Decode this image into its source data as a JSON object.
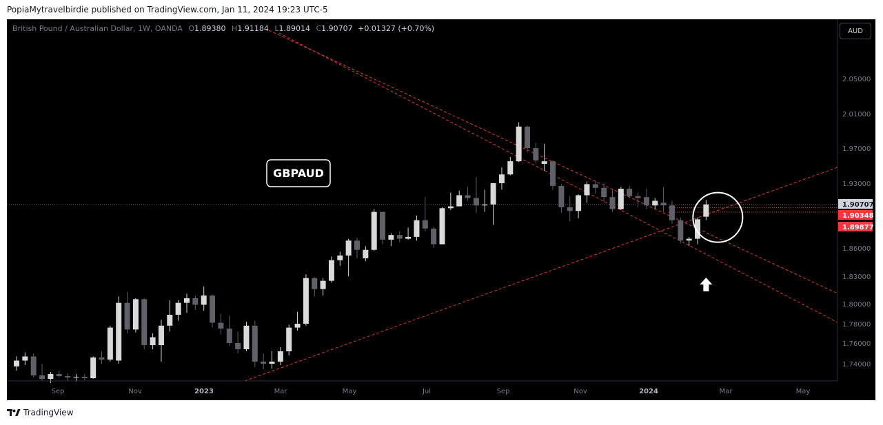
{
  "header": {
    "text": "PopiaMytravelbirdie published on TradingView.com, Jan 11, 2024 19:23 UTC-5"
  },
  "legend": {
    "symbol": "British Pound / Australian Dollar, 1W, OANDA",
    "o_label": "O",
    "o_value": "1.89380",
    "h_label": "H",
    "h_value": "1.91184",
    "l_label": "L",
    "l_value": "1.89014",
    "c_label": "C",
    "c_value": "1.90707",
    "change": "+0.01327 (+0.70%)"
  },
  "currency_button": "AUD",
  "annotation_label": "GBPAUD",
  "footer": {
    "brand": "TradingView",
    "logo_icon": "tradingview-logo-icon"
  },
  "colors": {
    "background": "#000000",
    "candle_up": "#d9d9d9",
    "candle_down": "#5f6068",
    "trendline": "#e53935",
    "last_price_badge": "#d1d4dc",
    "price_badge_red": "#f23645",
    "axis_text": "#787b86"
  },
  "chart_data": {
    "type": "candlestick",
    "title": "",
    "ylabel": "",
    "price_ticks": [
      "2.05000",
      "2.01000",
      "1.97000",
      "1.93000",
      "1.86000",
      "1.83000",
      "1.80000",
      "1.78000",
      "1.76000",
      "1.74000"
    ],
    "time_labels": [
      "Sep",
      "Nov",
      "2023",
      "Mar",
      "May",
      "Jul",
      "Sep",
      "Nov",
      "2024",
      "Mar",
      "May"
    ],
    "price_badges": [
      {
        "value": "1.90707",
        "style": "last"
      },
      {
        "value": "1.90348",
        "style": "red"
      },
      {
        "value": "1.89877",
        "style": "red"
      }
    ],
    "candles": [
      {
        "o": 1.736,
        "h": 1.7472,
        "l": 1.73,
        "c": 1.743
      },
      {
        "o": 1.743,
        "h": 1.751,
        "l": 1.738,
        "c": 1.747
      },
      {
        "o": 1.747,
        "h": 1.75,
        "l": 1.72,
        "c": 1.723
      },
      {
        "o": 1.723,
        "h": 1.74,
        "l": 1.715,
        "c": 1.718
      },
      {
        "o": 1.718,
        "h": 1.728,
        "l": 1.712,
        "c": 1.725
      },
      {
        "o": 1.725,
        "h": 1.73,
        "l": 1.72,
        "c": 1.722
      },
      {
        "o": 1.722,
        "h": 1.726,
        "l": 1.715,
        "c": 1.72
      },
      {
        "o": 1.72,
        "h": 1.725,
        "l": 1.714,
        "c": 1.721
      },
      {
        "o": 1.721,
        "h": 1.725,
        "l": 1.716,
        "c": 1.719
      },
      {
        "o": 1.719,
        "h": 1.747,
        "l": 1.718,
        "c": 1.746
      },
      {
        "o": 1.746,
        "h": 1.752,
        "l": 1.74,
        "c": 1.744
      },
      {
        "o": 1.744,
        "h": 1.778,
        "l": 1.742,
        "c": 1.776
      },
      {
        "o": 1.743,
        "h": 1.808,
        "l": 1.74,
        "c": 1.801
      },
      {
        "o": 1.801,
        "h": 1.813,
        "l": 1.77,
        "c": 1.774
      },
      {
        "o": 1.774,
        "h": 1.806,
        "l": 1.771,
        "c": 1.805
      },
      {
        "o": 1.805,
        "h": 1.806,
        "l": 1.754,
        "c": 1.758
      },
      {
        "o": 1.758,
        "h": 1.77,
        "l": 1.754,
        "c": 1.766
      },
      {
        "o": 1.758,
        "h": 1.784,
        "l": 1.742,
        "c": 1.778
      },
      {
        "o": 1.778,
        "h": 1.804,
        "l": 1.772,
        "c": 1.789
      },
      {
        "o": 1.789,
        "h": 1.804,
        "l": 1.783,
        "c": 1.801
      },
      {
        "o": 1.801,
        "h": 1.811,
        "l": 1.791,
        "c": 1.806
      },
      {
        "o": 1.806,
        "h": 1.809,
        "l": 1.794,
        "c": 1.799
      },
      {
        "o": 1.799,
        "h": 1.819,
        "l": 1.793,
        "c": 1.809
      },
      {
        "o": 1.809,
        "h": 1.81,
        "l": 1.776,
        "c": 1.781
      },
      {
        "o": 1.781,
        "h": 1.79,
        "l": 1.769,
        "c": 1.775
      },
      {
        "o": 1.775,
        "h": 1.788,
        "l": 1.757,
        "c": 1.76
      },
      {
        "o": 1.76,
        "h": 1.772,
        "l": 1.75,
        "c": 1.754
      },
      {
        "o": 1.754,
        "h": 1.782,
        "l": 1.752,
        "c": 1.778
      },
      {
        "o": 1.778,
        "h": 1.783,
        "l": 1.735,
        "c": 1.742
      },
      {
        "o": 1.742,
        "h": 1.75,
        "l": 1.732,
        "c": 1.74
      },
      {
        "o": 1.74,
        "h": 1.752,
        "l": 1.733,
        "c": 1.742
      },
      {
        "o": 1.742,
        "h": 1.756,
        "l": 1.738,
        "c": 1.752
      },
      {
        "o": 1.752,
        "h": 1.779,
        "l": 1.748,
        "c": 1.776
      },
      {
        "o": 1.776,
        "h": 1.792,
        "l": 1.773,
        "c": 1.78
      },
      {
        "o": 1.78,
        "h": 1.832,
        "l": 1.778,
        "c": 1.828
      },
      {
        "o": 1.828,
        "h": 1.829,
        "l": 1.808,
        "c": 1.816
      },
      {
        "o": 1.816,
        "h": 1.828,
        "l": 1.809,
        "c": 1.825
      },
      {
        "o": 1.825,
        "h": 1.851,
        "l": 1.823,
        "c": 1.847
      },
      {
        "o": 1.847,
        "h": 1.856,
        "l": 1.841,
        "c": 1.852
      },
      {
        "o": 1.852,
        "h": 1.87,
        "l": 1.83,
        "c": 1.868
      },
      {
        "o": 1.868,
        "h": 1.871,
        "l": 1.849,
        "c": 1.858
      },
      {
        "o": 1.849,
        "h": 1.862,
        "l": 1.846,
        "c": 1.858
      },
      {
        "o": 1.858,
        "h": 1.902,
        "l": 1.857,
        "c": 1.899
      },
      {
        "o": 1.899,
        "h": 1.899,
        "l": 1.864,
        "c": 1.869
      },
      {
        "o": 1.869,
        "h": 1.876,
        "l": 1.862,
        "c": 1.874
      },
      {
        "o": 1.874,
        "h": 1.878,
        "l": 1.866,
        "c": 1.87
      },
      {
        "o": 1.87,
        "h": 1.882,
        "l": 1.869,
        "c": 1.872
      },
      {
        "o": 1.872,
        "h": 1.895,
        "l": 1.868,
        "c": 1.89
      },
      {
        "o": 1.89,
        "h": 1.915,
        "l": 1.878,
        "c": 1.881
      },
      {
        "o": 1.881,
        "h": 1.883,
        "l": 1.86,
        "c": 1.864
      },
      {
        "o": 1.864,
        "h": 1.904,
        "l": 1.864,
        "c": 1.903
      },
      {
        "o": 1.903,
        "h": 1.92,
        "l": 1.901,
        "c": 1.905
      },
      {
        "o": 1.905,
        "h": 1.922,
        "l": 1.905,
        "c": 1.917
      },
      {
        "o": 1.917,
        "h": 1.926,
        "l": 1.911,
        "c": 1.914
      },
      {
        "o": 1.914,
        "h": 1.937,
        "l": 1.898,
        "c": 1.906
      },
      {
        "o": 1.906,
        "h": 1.923,
        "l": 1.899,
        "c": 1.907
      },
      {
        "o": 1.907,
        "h": 1.93,
        "l": 1.885,
        "c": 1.93
      },
      {
        "o": 1.93,
        "h": 1.948,
        "l": 1.923,
        "c": 1.94
      },
      {
        "o": 1.94,
        "h": 1.96,
        "l": 1.939,
        "c": 1.955
      },
      {
        "o": 1.955,
        "h": 2.0,
        "l": 1.954,
        "c": 1.995
      },
      {
        "o": 1.995,
        "h": 1.996,
        "l": 1.965,
        "c": 1.97
      },
      {
        "o": 1.97,
        "h": 1.976,
        "l": 1.953,
        "c": 1.956
      },
      {
        "o": 1.952,
        "h": 1.975,
        "l": 1.944,
        "c": 1.955
      },
      {
        "o": 1.955,
        "h": 1.956,
        "l": 1.923,
        "c": 1.927
      },
      {
        "o": 1.927,
        "h": 1.929,
        "l": 1.898,
        "c": 1.904
      },
      {
        "o": 1.904,
        "h": 1.916,
        "l": 1.889,
        "c": 1.9
      },
      {
        "o": 1.9,
        "h": 1.918,
        "l": 1.892,
        "c": 1.917
      },
      {
        "o": 1.917,
        "h": 1.932,
        "l": 1.909,
        "c": 1.929
      },
      {
        "o": 1.929,
        "h": 1.933,
        "l": 1.919,
        "c": 1.925
      },
      {
        "o": 1.925,
        "h": 1.93,
        "l": 1.91,
        "c": 1.915
      },
      {
        "o": 1.915,
        "h": 1.923,
        "l": 1.899,
        "c": 1.902
      },
      {
        "o": 1.902,
        "h": 1.926,
        "l": 1.901,
        "c": 1.924
      },
      {
        "o": 1.924,
        "h": 1.927,
        "l": 1.914,
        "c": 1.916
      },
      {
        "o": 1.916,
        "h": 1.92,
        "l": 1.904,
        "c": 1.914
      },
      {
        "o": 1.915,
        "h": 1.924,
        "l": 1.902,
        "c": 1.906
      },
      {
        "o": 1.906,
        "h": 1.914,
        "l": 1.902,
        "c": 1.911
      },
      {
        "o": 1.909,
        "h": 1.926,
        "l": 1.899,
        "c": 1.906
      },
      {
        "o": 1.906,
        "h": 1.911,
        "l": 1.886,
        "c": 1.89
      },
      {
        "o": 1.89,
        "h": 1.893,
        "l": 1.865,
        "c": 1.868
      },
      {
        "o": 1.868,
        "h": 1.872,
        "l": 1.862,
        "c": 1.87
      },
      {
        "o": 1.87,
        "h": 1.893,
        "l": 1.864,
        "c": 1.891
      },
      {
        "o": 1.8938,
        "h": 1.9118,
        "l": 1.8901,
        "c": 1.9071
      }
    ],
    "trendlines": [
      "descending-upper",
      "descending-middle",
      "ascending-support"
    ],
    "annotations": [
      "circle-highlight",
      "up-arrow",
      "label-box"
    ]
  }
}
